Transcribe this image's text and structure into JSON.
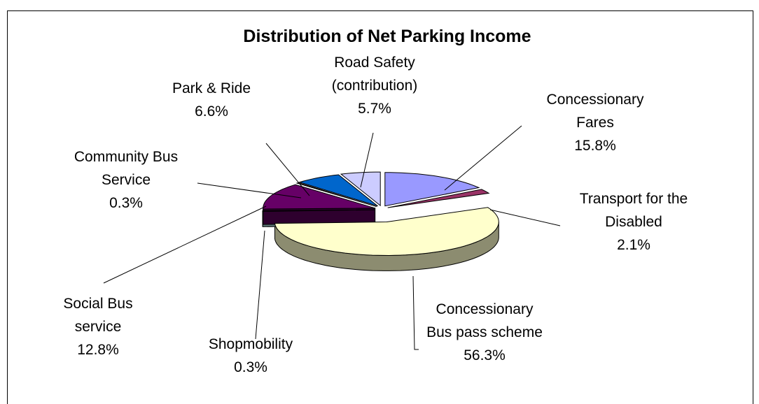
{
  "chart_data": {
    "type": "pie",
    "title": "Distribution of Net Parking Income",
    "categories": [
      "Concessionary Fares",
      "Transport for the Disabled",
      "Concessionary Bus pass scheme",
      "Shopmobility",
      "Social Bus service",
      "Community Bus Service",
      "Park & Ride",
      "Road Safety (contribution)"
    ],
    "values": [
      15.8,
      2.1,
      56.3,
      0.3,
      12.8,
      0.3,
      6.6,
      5.7
    ],
    "value_labels": [
      "15.8%",
      "2.1%",
      "56.3%",
      "0.3%",
      "12.8%",
      "0.3%",
      "6.6%",
      "5.7%"
    ],
    "colors": [
      "#9999ff",
      "#993366",
      "#ffffcc",
      "#ccffff",
      "#660066",
      "#ff8080",
      "#0066cc",
      "#ccccff"
    ]
  }
}
